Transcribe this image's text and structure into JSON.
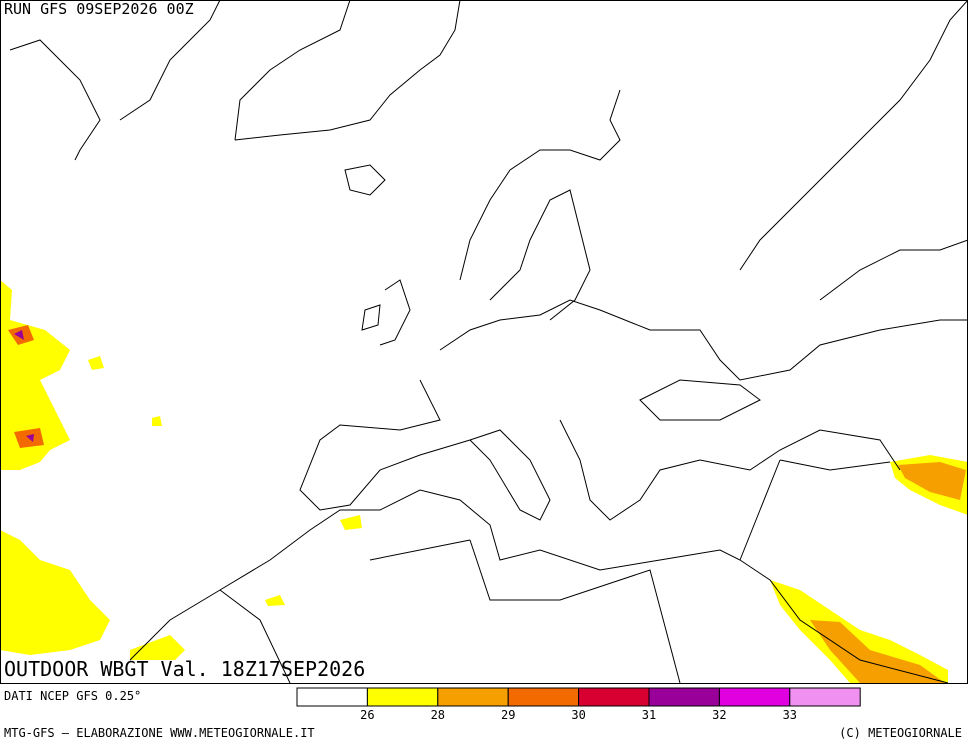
{
  "header": {
    "run": "RUN GFS 09SEP2026 00Z"
  },
  "title": "OUTDOOR WBGT Val. 18Z17SEP2026",
  "source": "DATI NCEP GFS 0.25°",
  "footer": {
    "left": "MTG-GFS — ELABORAZIONE WWW.METEOGIORNALE.IT",
    "right": "(C) METEOGIORNALE"
  },
  "legend": {
    "colors": [
      "#ffffff",
      "#ffff00",
      "#f5a000",
      "#f26a00",
      "#d80030",
      "#990099",
      "#e000e0",
      "#f090f0"
    ],
    "labels": [
      26,
      28,
      29,
      30,
      31,
      32,
      33
    ]
  }
}
